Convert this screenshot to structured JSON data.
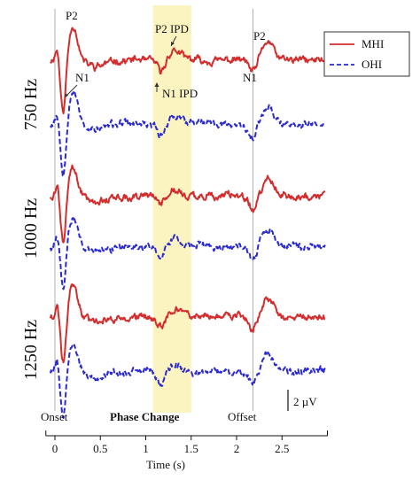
{
  "chart_data": {
    "type": "line",
    "xlabel": "Time (s)",
    "xlim": [
      -0.1,
      3.0
    ],
    "xticks": [
      "0",
      "0.5",
      "1",
      "1.5",
      "2",
      "2.5"
    ],
    "event_labels": {
      "onset": "Onset",
      "phase_change": "Phase Change",
      "offset": "Offset"
    },
    "event_times": {
      "onset": 0.0,
      "phase_change_start": 1.08,
      "phase_change_end": 1.5,
      "offset": 2.18
    },
    "phase_change_color": "#fbf4c0",
    "scale_bar": "2 µV",
    "legend": {
      "placement": "top-right",
      "entries": [
        "MHI",
        "OHI"
      ]
    },
    "series_styles": {
      "MHI": {
        "color": "#d42d2d",
        "style": "solid"
      },
      "OHI": {
        "color": "#2a2ad0",
        "style": "dashed"
      }
    },
    "rows": [
      {
        "label": "750 Hz"
      },
      {
        "label": "1000 Hz"
      },
      {
        "label": "1250 Hz"
      }
    ],
    "annotations": {
      "p2": "P2",
      "n1": "N1",
      "p2_ipd": "P2 IPD",
      "n1_ipd": "N1 IPD"
    }
  }
}
